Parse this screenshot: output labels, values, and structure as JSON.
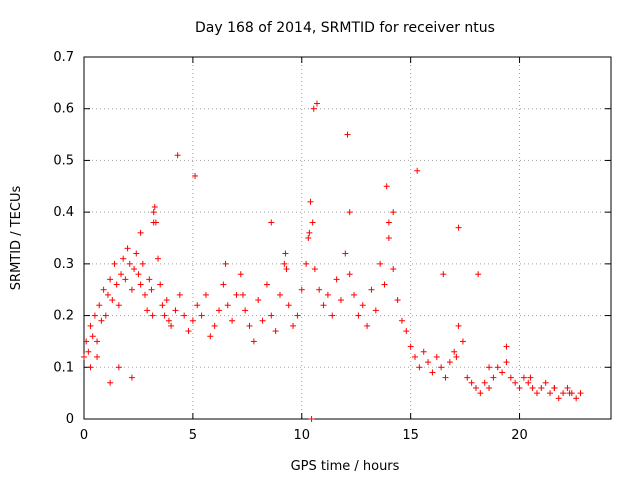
{
  "chart_data": {
    "type": "scatter",
    "title": "Day 168 of 2014, SRMTID for receiver ntus",
    "xlabel": "GPS time / hours",
    "ylabel": "SRMTID / TECUs",
    "xlim": [
      0,
      24.2
    ],
    "ylim": [
      0,
      0.7
    ],
    "xticks": [
      0,
      5,
      10,
      15,
      20
    ],
    "yticks": [
      0,
      0.1,
      0.2,
      0.3,
      0.4,
      0.5,
      0.6,
      0.7
    ],
    "grid": true,
    "marker": "+",
    "colors": {
      "series": "#ff0000",
      "grid": "#a0a0a0",
      "axes": "#000000"
    },
    "series": [
      {
        "name": "SRMTID",
        "x": [
          0.0,
          0.1,
          0.2,
          0.3,
          0.4,
          0.5,
          0.6,
          0.7,
          0.8,
          0.9,
          1.0,
          1.1,
          1.2,
          1.3,
          1.4,
          1.5,
          1.6,
          1.7,
          1.8,
          1.9,
          2.0,
          2.1,
          2.2,
          2.3,
          2.4,
          2.5,
          2.6,
          2.7,
          2.8,
          2.9,
          3.0,
          3.1,
          3.2,
          3.3,
          3.4,
          3.5,
          3.6,
          3.7,
          3.8,
          3.9,
          4.0,
          4.2,
          4.4,
          4.6,
          4.8,
          5.0,
          5.2,
          5.4,
          5.6,
          5.8,
          6.0,
          6.2,
          6.4,
          6.6,
          6.8,
          7.0,
          7.2,
          7.4,
          7.6,
          7.8,
          8.0,
          8.2,
          8.4,
          8.6,
          8.8,
          9.0,
          9.2,
          9.4,
          9.6,
          9.8,
          10.0,
          10.2,
          10.3,
          10.4,
          10.5,
          10.6,
          10.8,
          11.0,
          11.2,
          11.4,
          11.6,
          11.8,
          12.0,
          12.2,
          12.4,
          12.6,
          12.8,
          13.0,
          13.2,
          13.4,
          13.6,
          13.8,
          14.0,
          14.2,
          14.4,
          14.6,
          14.8,
          15.0,
          15.2,
          15.4,
          15.6,
          15.8,
          16.0,
          16.2,
          16.4,
          16.6,
          16.8,
          17.0,
          17.2,
          17.4,
          17.6,
          17.8,
          18.0,
          18.2,
          18.4,
          18.6,
          18.8,
          19.0,
          19.2,
          19.4,
          19.6,
          19.8,
          20.0,
          20.2,
          20.4,
          20.6,
          20.8,
          21.0,
          21.2,
          21.4,
          21.6,
          21.8,
          22.0,
          22.2,
          22.4,
          22.6,
          22.8,
          0.3,
          0.6,
          1.2,
          1.6,
          2.2,
          2.6,
          3.15,
          3.2,
          3.25,
          4.3,
          5.1,
          6.5,
          7.3,
          8.6,
          9.25,
          9.3,
          10.35,
          10.45,
          10.55,
          10.7,
          12.1,
          12.2,
          13.9,
          14.0,
          14.2,
          15.3,
          16.5,
          17.1,
          17.2,
          18.1,
          18.6,
          19.4,
          20.5,
          21.6,
          22.3
        ],
        "values": [
          0.12,
          0.15,
          0.13,
          0.18,
          0.16,
          0.2,
          0.15,
          0.22,
          0.19,
          0.25,
          0.2,
          0.24,
          0.27,
          0.23,
          0.3,
          0.26,
          0.22,
          0.28,
          0.31,
          0.27,
          0.33,
          0.3,
          0.25,
          0.29,
          0.32,
          0.28,
          0.26,
          0.3,
          0.24,
          0.21,
          0.27,
          0.25,
          0.4,
          0.38,
          0.31,
          0.26,
          0.22,
          0.2,
          0.23,
          0.19,
          0.18,
          0.21,
          0.24,
          0.2,
          0.17,
          0.19,
          0.22,
          0.2,
          0.24,
          0.16,
          0.18,
          0.21,
          0.26,
          0.22,
          0.19,
          0.24,
          0.28,
          0.21,
          0.18,
          0.15,
          0.23,
          0.19,
          0.26,
          0.2,
          0.17,
          0.24,
          0.3,
          0.22,
          0.18,
          0.2,
          0.25,
          0.3,
          0.35,
          0.42,
          0.38,
          0.29,
          0.25,
          0.22,
          0.24,
          0.2,
          0.27,
          0.23,
          0.32,
          0.28,
          0.24,
          0.2,
          0.22,
          0.18,
          0.25,
          0.21,
          0.3,
          0.26,
          0.35,
          0.29,
          0.23,
          0.19,
          0.17,
          0.14,
          0.12,
          0.1,
          0.13,
          0.11,
          0.09,
          0.12,
          0.1,
          0.08,
          0.11,
          0.13,
          0.18,
          0.15,
          0.08,
          0.07,
          0.06,
          0.05,
          0.07,
          0.06,
          0.08,
          0.1,
          0.09,
          0.11,
          0.08,
          0.07,
          0.06,
          0.08,
          0.07,
          0.06,
          0.05,
          0.06,
          0.07,
          0.05,
          0.06,
          0.04,
          0.05,
          0.06,
          0.05,
          0.04,
          0.05,
          0.1,
          0.12,
          0.07,
          0.1,
          0.08,
          0.36,
          0.2,
          0.38,
          0.41,
          0.51,
          0.47,
          0.3,
          0.24,
          0.38,
          0.32,
          0.29,
          0.36,
          0.0,
          0.6,
          0.61,
          0.55,
          0.4,
          0.45,
          0.38,
          0.4,
          0.48,
          0.28,
          0.12,
          0.37,
          0.28,
          0.1,
          0.14,
          0.08,
          0.06,
          0.05
        ]
      }
    ]
  }
}
